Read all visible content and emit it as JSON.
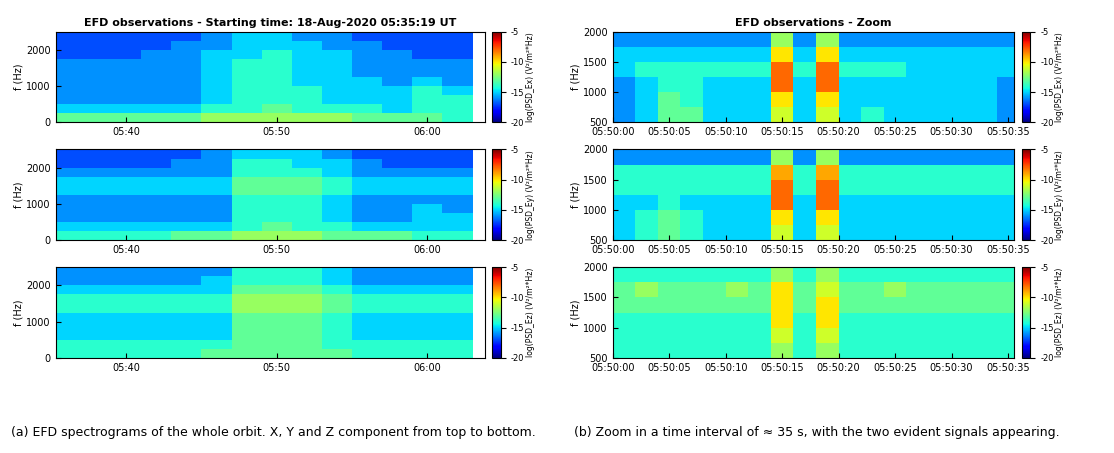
{
  "chart_data": [
    {
      "type": "heatmap",
      "title": "EFD observations - Starting time: 18-Aug-2020 05:35:19 UT",
      "y_label": "f (Hz)",
      "x": [
        36,
        38,
        40,
        42,
        44,
        46,
        48,
        50,
        52,
        54,
        56,
        58,
        60,
        62
      ],
      "y": [
        125,
        375,
        625,
        875,
        1125,
        1375,
        1625,
        1875,
        2125,
        2375
      ],
      "xlim": [
        35.32,
        63.8
      ],
      "ylim": [
        0,
        2500
      ],
      "xticks": [
        {
          "value": 40,
          "label": "05:40"
        },
        {
          "value": 50,
          "label": "05:50"
        },
        {
          "value": 60,
          "label": "06:00"
        }
      ],
      "yticks": [
        0,
        1000,
        2000
      ],
      "colorbar": {
        "label": "log(PSD_Ex) (V²/m²*Hz)",
        "range": [
          -20,
          -5
        ],
        "ticks": [
          -20,
          -15,
          -10,
          -5
        ]
      },
      "cells": [
        [
          -13,
          -13,
          -13,
          -13,
          -13,
          -12,
          -12,
          -12,
          -12,
          -12,
          -13,
          -13,
          -13,
          -14
        ],
        [
          -15,
          -15,
          -15,
          -15,
          -15,
          -14,
          -14,
          -13,
          -14,
          -14,
          -14,
          -15,
          -14,
          -14
        ],
        [
          -16,
          -16,
          -16,
          -16,
          -16,
          -15,
          -14,
          -14,
          -14,
          -15,
          -15,
          -15,
          -14,
          -14
        ],
        [
          -16,
          -16,
          -16,
          -16,
          -16,
          -15,
          -14,
          -14,
          -14,
          -15,
          -15,
          -15,
          -14,
          -15
        ],
        [
          -16,
          -16,
          -16,
          -16,
          -16,
          -15,
          -14,
          -14,
          -15,
          -15,
          -15,
          -16,
          -15,
          -16
        ],
        [
          -16,
          -16,
          -16,
          -16,
          -16,
          -15,
          -14,
          -14,
          -15,
          -15,
          -16,
          -16,
          -16,
          -16
        ],
        [
          -16,
          -16,
          -16,
          -16,
          -16,
          -15,
          -14,
          -14,
          -15,
          -15,
          -16,
          -16,
          -16,
          -16
        ],
        [
          -17,
          -17,
          -17,
          -16,
          -16,
          -15,
          -15,
          -14,
          -15,
          -15,
          -16,
          -16,
          -17,
          -17
        ],
        [
          -17,
          -17,
          -17,
          -17,
          -16,
          -16,
          -15,
          -15,
          -15,
          -16,
          -16,
          -17,
          -17,
          -17
        ],
        [
          -17,
          -17,
          -17,
          -17,
          -17,
          -16,
          -15,
          -15,
          -16,
          -16,
          -17,
          -17,
          -17,
          -17
        ]
      ]
    },
    {
      "type": "heatmap",
      "y_label": "f (Hz)",
      "x": [
        36,
        38,
        40,
        42,
        44,
        46,
        48,
        50,
        52,
        54,
        56,
        58,
        60,
        62
      ],
      "y": [
        125,
        375,
        625,
        875,
        1125,
        1375,
        1625,
        1875,
        2125,
        2375
      ],
      "xlim": [
        35.32,
        63.8
      ],
      "ylim": [
        0,
        2500
      ],
      "xticks": [
        {
          "value": 40,
          "label": "05:40"
        },
        {
          "value": 50,
          "label": "05:50"
        },
        {
          "value": 60,
          "label": "06:00"
        }
      ],
      "yticks": [
        0,
        1000,
        2000
      ],
      "colorbar": {
        "label": "log(PSD_Ey) (V²/m²*Hz)",
        "range": [
          -20,
          -5
        ],
        "ticks": [
          -20,
          -15,
          -10,
          -5
        ]
      },
      "cells": [
        [
          -14,
          -14,
          -14,
          -14,
          -13,
          -13,
          -12,
          -12,
          -12,
          -13,
          -13,
          -13,
          -14,
          -14
        ],
        [
          -15,
          -15,
          -15,
          -15,
          -15,
          -15,
          -14,
          -13,
          -14,
          -14,
          -15,
          -15,
          -15,
          -15
        ],
        [
          -16,
          -16,
          -16,
          -16,
          -16,
          -16,
          -14,
          -14,
          -14,
          -15,
          -16,
          -16,
          -15,
          -15
        ],
        [
          -16,
          -16,
          -16,
          -16,
          -16,
          -16,
          -14,
          -14,
          -14,
          -15,
          -16,
          -16,
          -15,
          -16
        ],
        [
          -16,
          -16,
          -16,
          -16,
          -16,
          -16,
          -14,
          -14,
          -14,
          -15,
          -16,
          -16,
          -16,
          -16
        ],
        [
          -15,
          -15,
          -15,
          -15,
          -15,
          -15,
          -13,
          -13,
          -13,
          -14,
          -15,
          -15,
          -15,
          -15
        ],
        [
          -15,
          -15,
          -15,
          -15,
          -15,
          -15,
          -13,
          -13,
          -13,
          -14,
          -15,
          -15,
          -15,
          -15
        ],
        [
          -16,
          -16,
          -16,
          -16,
          -16,
          -16,
          -14,
          -14,
          -14,
          -15,
          -16,
          -16,
          -16,
          -16
        ],
        [
          -17,
          -17,
          -17,
          -17,
          -16,
          -16,
          -14,
          -14,
          -15,
          -15,
          -16,
          -17,
          -17,
          -17
        ],
        [
          -17,
          -17,
          -17,
          -17,
          -17,
          -16,
          -15,
          -15,
          -15,
          -16,
          -17,
          -17,
          -17,
          -17
        ]
      ]
    },
    {
      "type": "heatmap",
      "y_label": "f (Hz)",
      "x": [
        36,
        38,
        40,
        42,
        44,
        46,
        48,
        50,
        52,
        54,
        56,
        58,
        60,
        62
      ],
      "y": [
        125,
        375,
        625,
        875,
        1125,
        1375,
        1625,
        1875,
        2125,
        2375
      ],
      "xlim": [
        35.32,
        63.8
      ],
      "ylim": [
        0,
        2500
      ],
      "xticks": [
        {
          "value": 40,
          "label": "05:40"
        },
        {
          "value": 50,
          "label": "05:50"
        },
        {
          "value": 60,
          "label": "06:00"
        }
      ],
      "yticks": [
        0,
        1000,
        2000
      ],
      "colorbar": {
        "label": "log(PSD_Ez) (V²/m²*Hz)",
        "range": [
          -20,
          -5
        ],
        "ticks": [
          -20,
          -15,
          -10,
          -5
        ]
      },
      "cells": [
        [
          -14,
          -14,
          -14,
          -14,
          -14,
          -13,
          -13,
          -13,
          -13,
          -13,
          -14,
          -14,
          -14,
          -14
        ],
        [
          -14,
          -14,
          -14,
          -14,
          -14,
          -14,
          -13,
          -13,
          -13,
          -14,
          -14,
          -14,
          -14,
          -14
        ],
        [
          -15,
          -15,
          -15,
          -15,
          -15,
          -15,
          -13,
          -13,
          -13,
          -14,
          -15,
          -15,
          -15,
          -15
        ],
        [
          -15,
          -15,
          -15,
          -15,
          -15,
          -15,
          -13,
          -13,
          -13,
          -14,
          -15,
          -15,
          -15,
          -15
        ],
        [
          -15,
          -15,
          -15,
          -15,
          -15,
          -15,
          -13,
          -13,
          -13,
          -14,
          -15,
          -15,
          -15,
          -15
        ],
        [
          -14,
          -14,
          -14,
          -14,
          -14,
          -14,
          -12,
          -12,
          -12,
          -13,
          -14,
          -14,
          -14,
          -14
        ],
        [
          -14,
          -14,
          -14,
          -14,
          -14,
          -14,
          -12,
          -12,
          -12,
          -13,
          -14,
          -14,
          -14,
          -14
        ],
        [
          -15,
          -15,
          -15,
          -15,
          -15,
          -15,
          -13,
          -13,
          -13,
          -14,
          -15,
          -15,
          -15,
          -15
        ],
        [
          -16,
          -16,
          -16,
          -16,
          -16,
          -15,
          -14,
          -14,
          -14,
          -15,
          -16,
          -16,
          -16,
          -16
        ],
        [
          -16,
          -16,
          -16,
          -16,
          -16,
          -16,
          -14,
          -14,
          -14,
          -15,
          -16,
          -16,
          -16,
          -16
        ]
      ]
    },
    {
      "type": "heatmap",
      "title": "EFD observations - Zoom",
      "y_label": "f (Hz)",
      "x": [
        1,
        3,
        5,
        7,
        9,
        11,
        13,
        15,
        17,
        19,
        21,
        23,
        25,
        27,
        29,
        31,
        33,
        35
      ],
      "y": [
        625,
        875,
        1125,
        1375,
        1625,
        1875
      ],
      "xlim": [
        0,
        35.5
      ],
      "ylim": [
        500,
        2000
      ],
      "xticks": [
        {
          "value": 0,
          "label": "05:50:00"
        },
        {
          "value": 5,
          "label": "05:50:05"
        },
        {
          "value": 10,
          "label": "05:50:10"
        },
        {
          "value": 15,
          "label": "05:50:15"
        },
        {
          "value": 20,
          "label": "05:50:20"
        },
        {
          "value": 25,
          "label": "05:50:25"
        },
        {
          "value": 30,
          "label": "05:50:30"
        },
        {
          "value": 35,
          "label": "05:50:35"
        }
      ],
      "yticks": [
        500,
        1000,
        1500,
        2000
      ],
      "colorbar": {
        "label": "log(PSD_Ex) (V²/m²*Hz)",
        "range": [
          -20,
          -5
        ],
        "ticks": [
          -20,
          -15,
          -10,
          -5
        ]
      },
      "cells": [
        [
          -16,
          -15,
          -13,
          -13,
          -15,
          -15,
          -15,
          -11,
          -15,
          -11,
          -15,
          -14,
          -15,
          -15,
          -15,
          -15,
          -15,
          -16
        ],
        [
          -16,
          -15,
          -13,
          -14,
          -15,
          -15,
          -15,
          -10,
          -15,
          -10,
          -15,
          -15,
          -15,
          -15,
          -15,
          -15,
          -15,
          -16
        ],
        [
          -16,
          -15,
          -14,
          -14,
          -15,
          -15,
          -15,
          -8,
          -15,
          -8,
          -15,
          -15,
          -15,
          -15,
          -15,
          -15,
          -15,
          -16
        ],
        [
          -15,
          -14,
          -14,
          -14,
          -14,
          -14,
          -14,
          -8,
          -14,
          -8,
          -14,
          -14,
          -14,
          -15,
          -15,
          -15,
          -15,
          -15
        ],
        [
          -15,
          -15,
          -15,
          -15,
          -15,
          -15,
          -15,
          -10,
          -15,
          -10,
          -15,
          -15,
          -15,
          -15,
          -15,
          -15,
          -15,
          -15
        ],
        [
          -16,
          -16,
          -16,
          -16,
          -16,
          -16,
          -16,
          -12,
          -16,
          -12,
          -16,
          -16,
          -16,
          -16,
          -16,
          -16,
          -16,
          -16
        ]
      ]
    },
    {
      "type": "heatmap",
      "y_label": "f (Hz)",
      "x": [
        1,
        3,
        5,
        7,
        9,
        11,
        13,
        15,
        17,
        19,
        21,
        23,
        25,
        27,
        29,
        31,
        33,
        35
      ],
      "y": [
        625,
        875,
        1125,
        1375,
        1625,
        1875
      ],
      "xlim": [
        0,
        35.5
      ],
      "ylim": [
        500,
        2000
      ],
      "xticks": [
        {
          "value": 0,
          "label": "05:50:00"
        },
        {
          "value": 5,
          "label": "05:50:05"
        },
        {
          "value": 10,
          "label": "05:50:10"
        },
        {
          "value": 15,
          "label": "05:50:15"
        },
        {
          "value": 20,
          "label": "05:50:20"
        },
        {
          "value": 25,
          "label": "05:50:25"
        },
        {
          "value": 30,
          "label": "05:50:30"
        },
        {
          "value": 35,
          "label": "05:50:35"
        }
      ],
      "yticks": [
        500,
        1000,
        1500,
        2000
      ],
      "colorbar": {
        "label": "log(PSD_Ey) (V²/m²*Hz)",
        "range": [
          -20,
          -5
        ],
        "ticks": [
          -20,
          -15,
          -10,
          -5
        ]
      },
      "cells": [
        [
          -15,
          -14,
          -13,
          -14,
          -15,
          -15,
          -15,
          -11,
          -15,
          -11,
          -15,
          -15,
          -15,
          -15,
          -15,
          -15,
          -15,
          -15
        ],
        [
          -15,
          -14,
          -13,
          -14,
          -15,
          -15,
          -15,
          -10,
          -15,
          -10,
          -15,
          -15,
          -15,
          -15,
          -15,
          -15,
          -15,
          -15
        ],
        [
          -15,
          -15,
          -14,
          -15,
          -15,
          -15,
          -15,
          -8,
          -15,
          -8,
          -15,
          -15,
          -15,
          -15,
          -15,
          -15,
          -15,
          -15
        ],
        [
          -14,
          -14,
          -14,
          -14,
          -14,
          -14,
          -14,
          -8,
          -14,
          -8,
          -14,
          -14,
          -14,
          -14,
          -14,
          -14,
          -14,
          -14
        ],
        [
          -14,
          -14,
          -14,
          -14,
          -14,
          -14,
          -14,
          -9,
          -14,
          -9,
          -14,
          -14,
          -14,
          -14,
          -14,
          -14,
          -14,
          -14
        ],
        [
          -16,
          -16,
          -16,
          -16,
          -16,
          -16,
          -16,
          -12,
          -16,
          -12,
          -16,
          -16,
          -16,
          -16,
          -16,
          -16,
          -16,
          -16
        ]
      ]
    },
    {
      "type": "heatmap",
      "y_label": "f (Hz)",
      "x": [
        1,
        3,
        5,
        7,
        9,
        11,
        13,
        15,
        17,
        19,
        21,
        23,
        25,
        27,
        29,
        31,
        33,
        35
      ],
      "y": [
        625,
        875,
        1125,
        1375,
        1625,
        1875
      ],
      "xlim": [
        0,
        35.5
      ],
      "ylim": [
        500,
        2000
      ],
      "xticks": [
        {
          "value": 0,
          "label": "05:50:00"
        },
        {
          "value": 5,
          "label": "05:50:05"
        },
        {
          "value": 10,
          "label": "05:50:10"
        },
        {
          "value": 15,
          "label": "05:50:15"
        },
        {
          "value": 20,
          "label": "05:50:20"
        },
        {
          "value": 25,
          "label": "05:50:25"
        },
        {
          "value": 30,
          "label": "05:50:30"
        },
        {
          "value": 35,
          "label": "05:50:35"
        }
      ],
      "yticks": [
        500,
        1000,
        1500,
        2000
      ],
      "colorbar": {
        "label": "log(PSD_Ez) (V²/m²*Hz)",
        "range": [
          -20,
          -5
        ],
        "ticks": [
          -20,
          -15,
          -10,
          -5
        ]
      },
      "cells": [
        [
          -14,
          -14,
          -14,
          -14,
          -14,
          -14,
          -14,
          -12,
          -14,
          -12,
          -14,
          -14,
          -14,
          -14,
          -14,
          -14,
          -14,
          -14
        ],
        [
          -14,
          -14,
          -14,
          -14,
          -14,
          -14,
          -14,
          -11,
          -14,
          -11,
          -14,
          -14,
          -14,
          -14,
          -14,
          -14,
          -14,
          -14
        ],
        [
          -14,
          -14,
          -14,
          -14,
          -14,
          -14,
          -14,
          -10,
          -14,
          -10,
          -14,
          -14,
          -14,
          -14,
          -14,
          -14,
          -14,
          -14
        ],
        [
          -13,
          -13,
          -13,
          -13,
          -13,
          -13,
          -13,
          -10,
          -13,
          -10,
          -13,
          -13,
          -13,
          -13,
          -13,
          -13,
          -13,
          -13
        ],
        [
          -13,
          -12,
          -13,
          -13,
          -13,
          -12,
          -13,
          -10,
          -13,
          -11,
          -13,
          -13,
          -12,
          -13,
          -13,
          -13,
          -13,
          -13
        ],
        [
          -14,
          -14,
          -14,
          -14,
          -14,
          -14,
          -14,
          -12,
          -14,
          -12,
          -14,
          -14,
          -14,
          -14,
          -14,
          -14,
          -14,
          -14
        ]
      ]
    }
  ],
  "captions": [
    "(a) EFD spectrograms of the whole orbit. X, Y and Z component from top to bottom.",
    "(b) Zoom in a time interval of ≈ 35 s, with the two evident signals appearing."
  ]
}
